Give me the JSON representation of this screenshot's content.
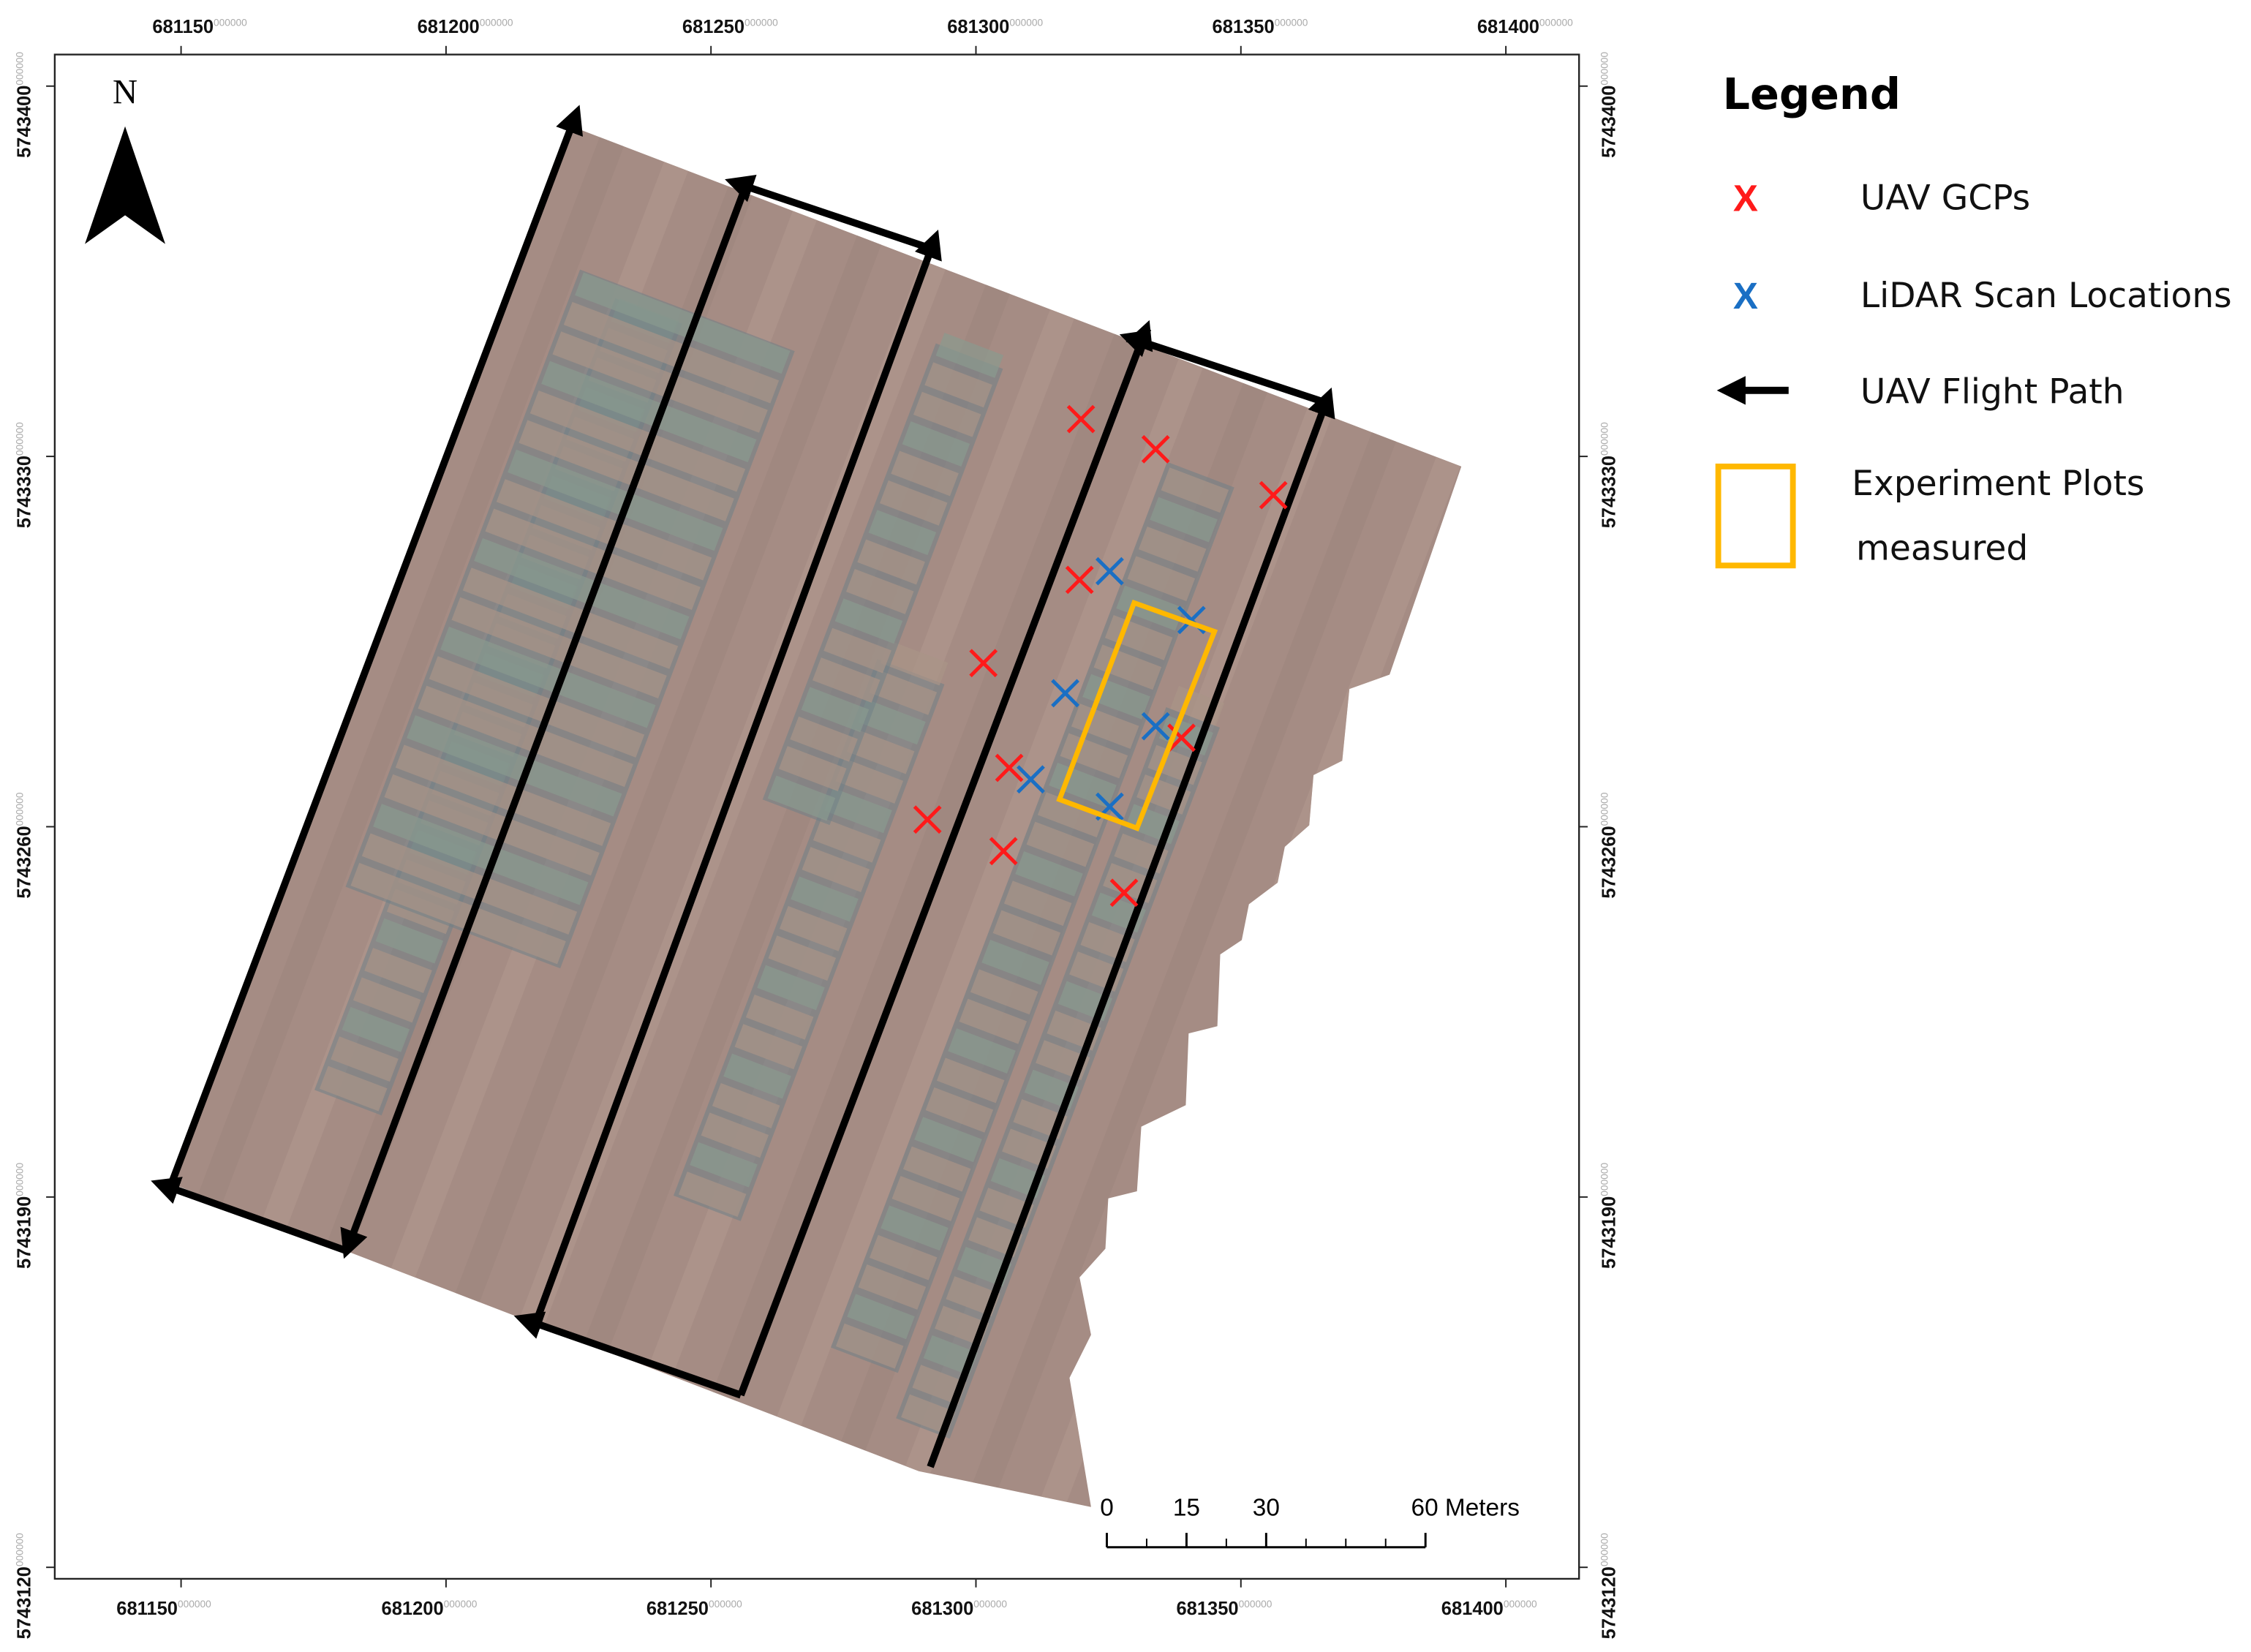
{
  "map": {
    "north_label": "N",
    "tick_suffix": "000000",
    "xticks": [
      681150,
      681200,
      681250,
      681300,
      681350,
      681400
    ],
    "yticks": [
      5743400,
      5743330,
      5743260,
      5743190,
      5743120
    ],
    "scale_bar": [
      0,
      15,
      30,
      {
        "value": 60,
        "label": "60 Meters"
      }
    ],
    "legend": {
      "title": "Legend",
      "items": [
        {
          "symbol": "X",
          "label": "UAV GCPs",
          "color": "#ff1a1a"
        },
        {
          "symbol": "X",
          "label": "LiDAR Scan Locations",
          "color": "#1a6fc4"
        },
        {
          "label": "UAV Flight Path",
          "color": "#000000"
        },
        {
          "label": [
            "Experiment Plots",
            "measured"
          ],
          "color": "#ffb800"
        }
      ]
    }
  }
}
